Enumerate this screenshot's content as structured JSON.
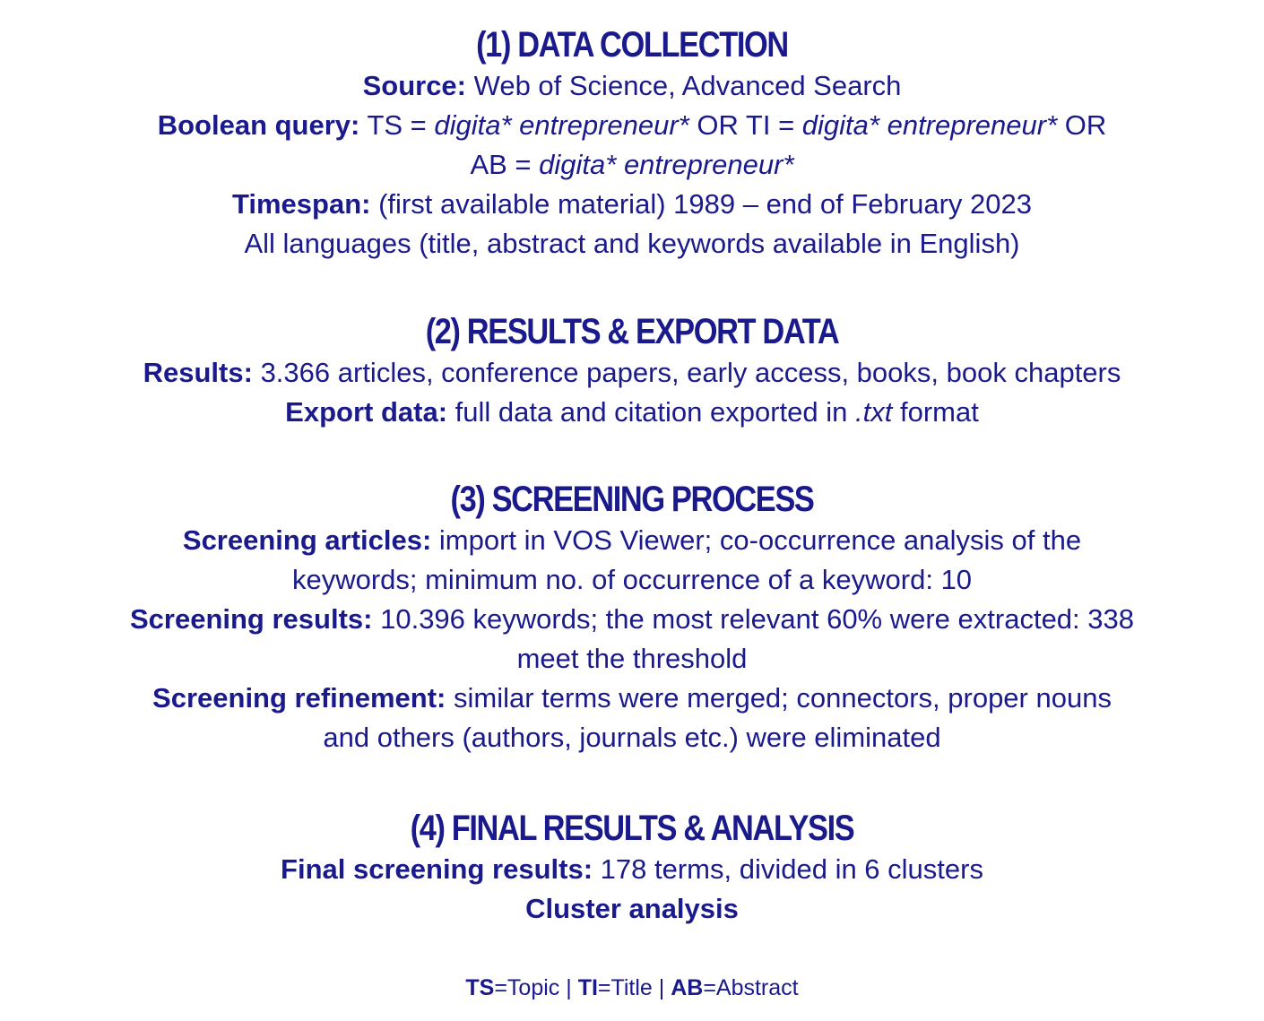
{
  "sections": [
    {
      "number": "(1)",
      "title": "DATA COLLECTION",
      "source_label": "Source:",
      "source_value": "Web of Science, Advanced Search",
      "query_label": "Boolean query:",
      "query_ts": "TS = ",
      "query_term1": "digita* entrepreneur*",
      "query_or_ti": " OR TI = ",
      "query_term2": "digita* entrepreneur*",
      "query_or": " OR",
      "query_ab": "AB = ",
      "query_term3": "digita* entrepreneur*",
      "timespan_label": "Timespan:",
      "timespan_value": "(first available material) 1989 – end of February 2023",
      "languages": "All languages (title, abstract and keywords available in English)"
    },
    {
      "number": "(2)",
      "title": "RESULTS & EXPORT DATA",
      "results_label": "Results:",
      "results_value": "3.366 articles, conference papers, early access, books, book chapters",
      "export_label": "Export data:",
      "export_value_pre": "full data and citation exported in ",
      "export_format": ".txt",
      "export_value_post": " format"
    },
    {
      "number": "(3)",
      "title": "SCREENING PROCESS",
      "articles_label": "Screening articles:",
      "articles_value_line1": "import in VOS Viewer; co-occurrence analysis of the",
      "articles_value_line2": "keywords; minimum  no. of occurrence of a keyword:  10",
      "results_label": "Screening results:",
      "results_value_line1": "10.396 keywords; the most relevant 60% were extracted: 338",
      "results_value_line2": "meet the threshold",
      "refinement_label": "Screening refinement:",
      "refinement_value_line1": "similar terms were merged; connectors, proper nouns",
      "refinement_value_line2": "and others (authors, journals etc.) were eliminated"
    },
    {
      "number": "(4)",
      "title": "FINAL RESULTS & ANALYSIS",
      "final_label": "Final screening results:",
      "final_value": "178 terms, divided in 6 clusters",
      "cluster": "Cluster analysis"
    }
  ],
  "legend": {
    "ts_abbr": "TS",
    "ts_text": "=Topic | ",
    "ti_abbr": "TI",
    "ti_text": "=Title | ",
    "ab_abbr": "AB",
    "ab_text": "=Abstract"
  },
  "colors": {
    "text": "#1a1a8c",
    "background": "#ffffff"
  }
}
